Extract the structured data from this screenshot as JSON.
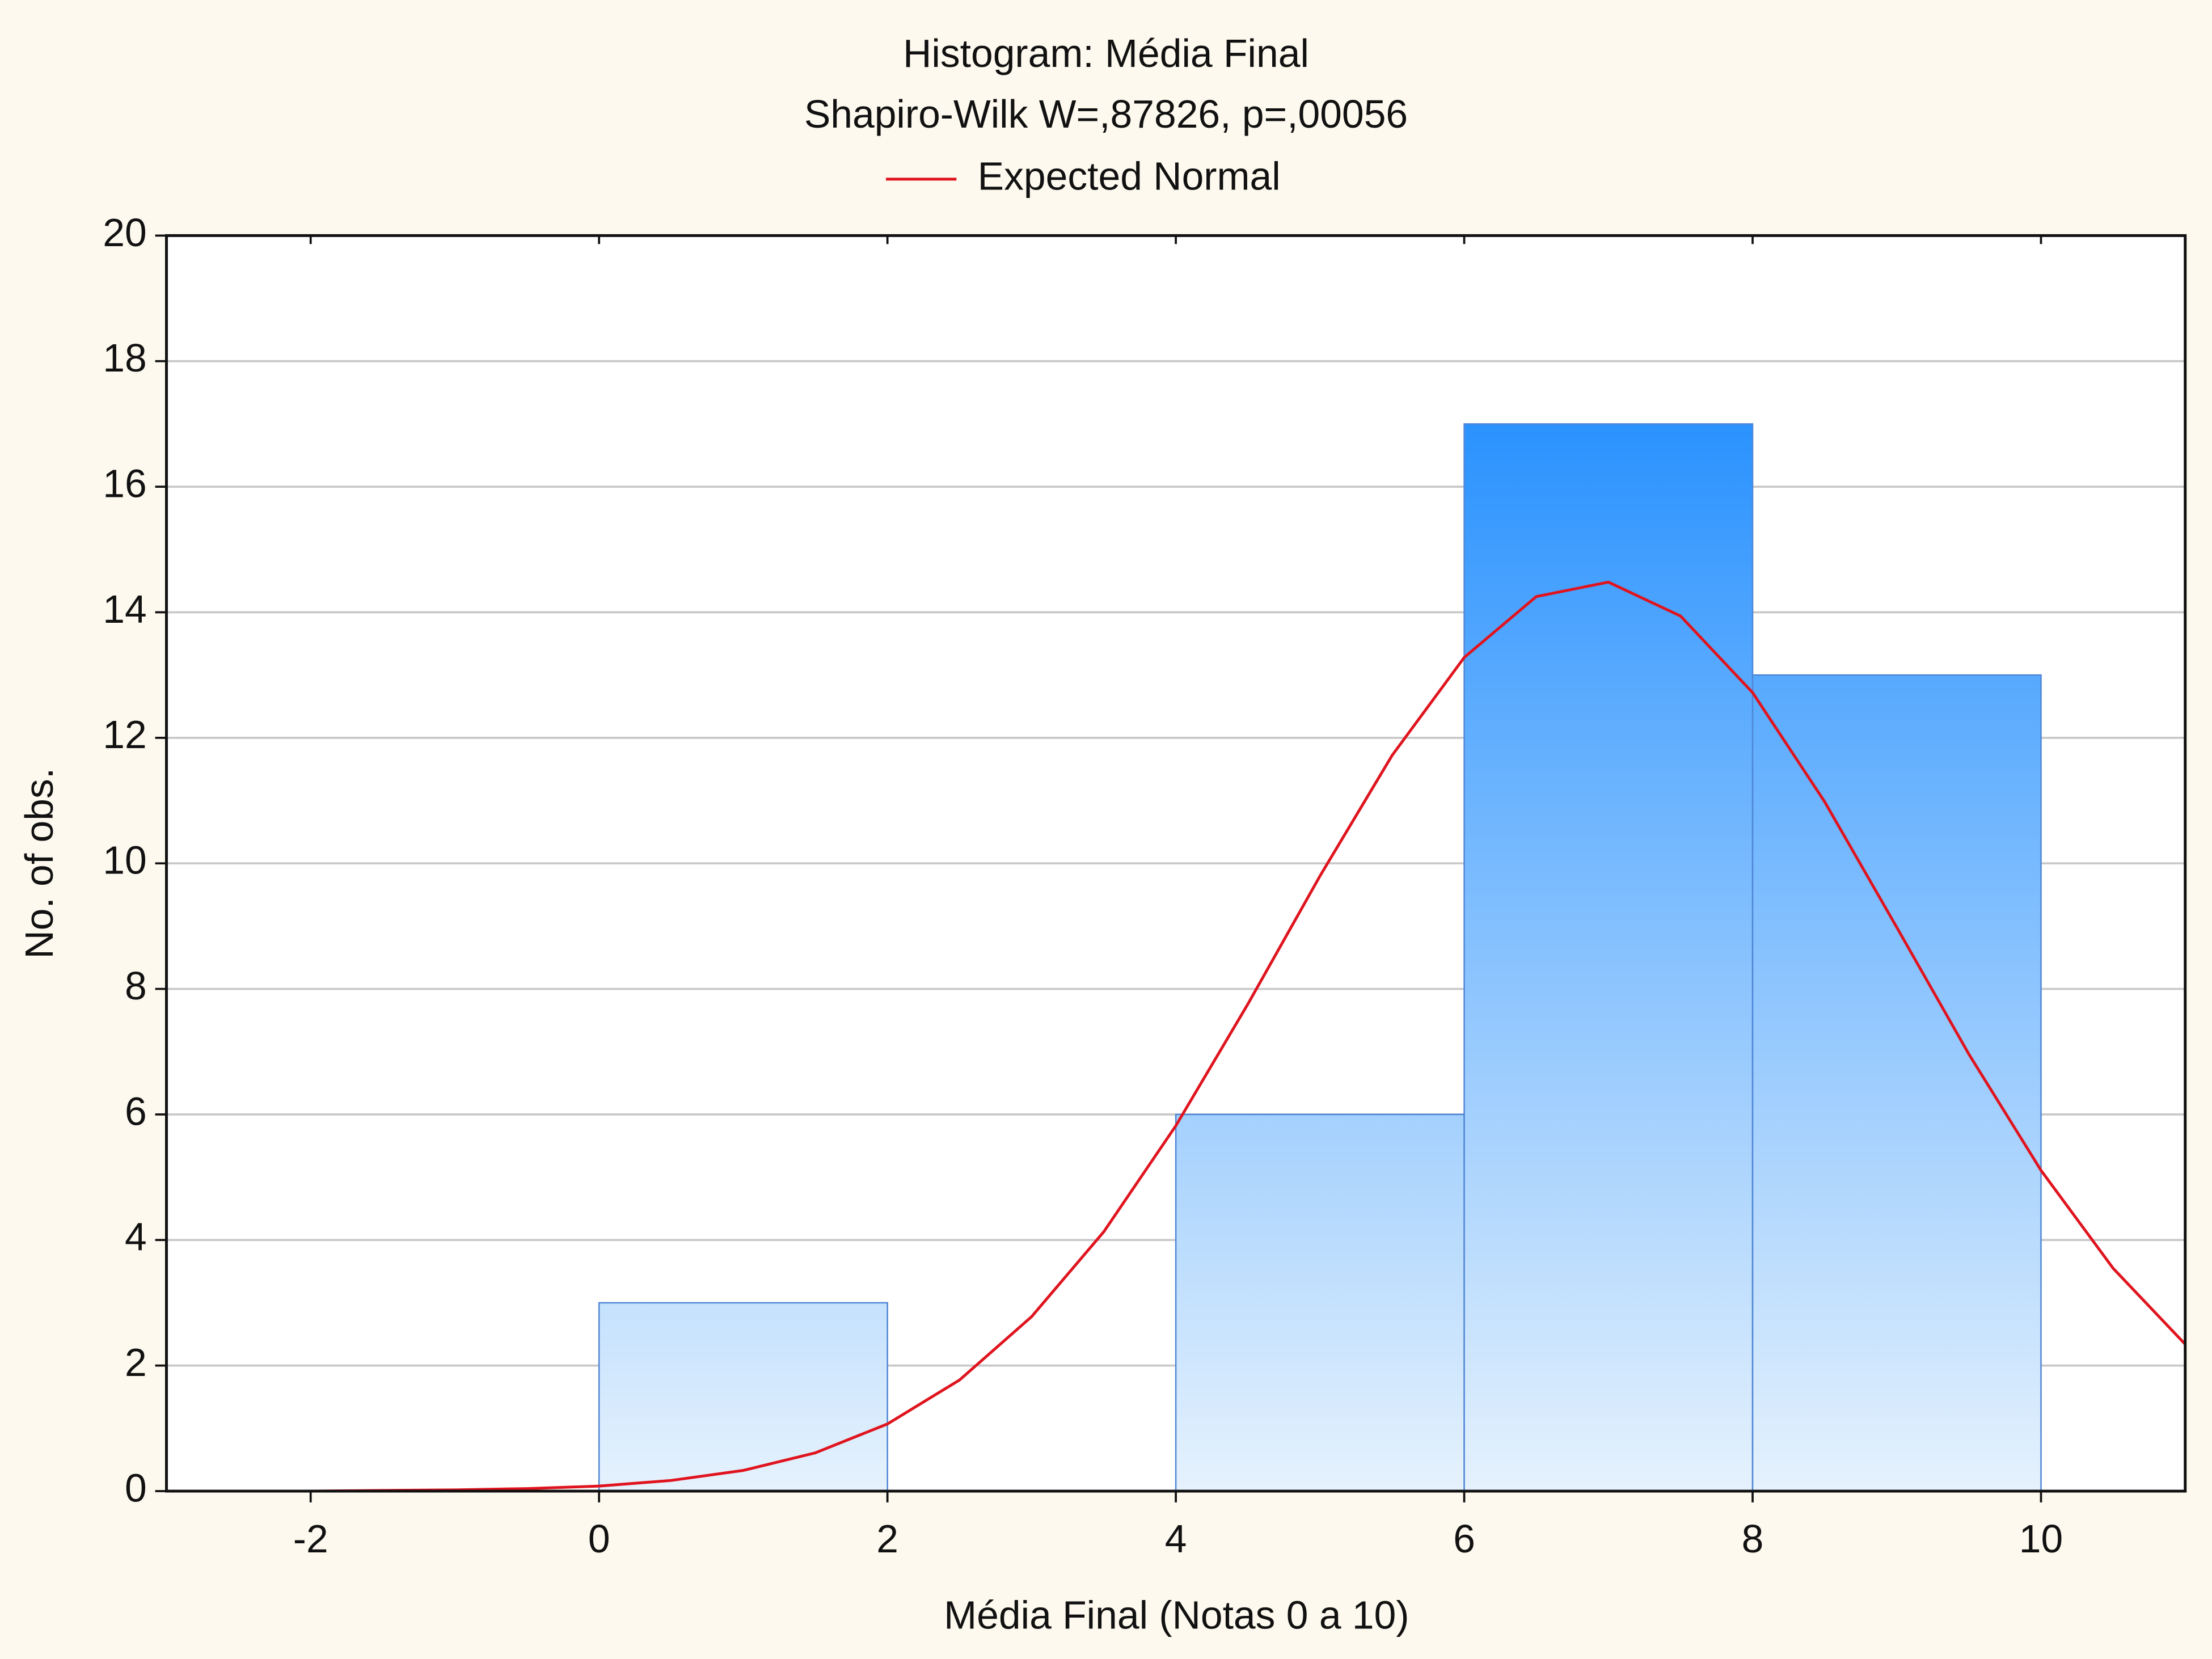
{
  "chart_data": {
    "type": "histogram",
    "title": "Histogram: Média Final",
    "subtitle": "Shapiro-Wilk W=,87826, p=,00056",
    "x_label": "Média Final (Notas 0 a 10)",
    "y_label": "No. of obs.",
    "bins": [
      0,
      2,
      4,
      6,
      8,
      10
    ],
    "counts": [
      3,
      0,
      6,
      17,
      13
    ],
    "color": "#2a92fe",
    "curve": {
      "name": "Expected Normal",
      "color": "#e0141e",
      "x": [
        -3,
        -2.5,
        -2,
        -1.5,
        -1,
        -0.5,
        0,
        0.5,
        1,
        1.5,
        2,
        2.5,
        3,
        3.5,
        4,
        4.5,
        5,
        5.5,
        6,
        6.5,
        7,
        7.5,
        8,
        8.5,
        9,
        9.5,
        10,
        10.5,
        11
      ],
      "values": [
        0,
        0,
        0,
        0.01,
        0.02,
        0.04,
        0.08,
        0.17,
        0.33,
        0.61,
        1.07,
        1.77,
        2.78,
        4.13,
        5.82,
        7.76,
        9.8,
        11.72,
        13.28,
        14.25,
        14.48,
        13.94,
        12.72,
        10.98,
        8.98,
        6.96,
        5.11,
        3.55,
        2.34
      ]
    },
    "xlim": [
      -3,
      11
    ],
    "xticks": [
      -2,
      0,
      2,
      4,
      6,
      8,
      10
    ],
    "ylim": [
      0,
      20
    ],
    "yticks": [
      0,
      2,
      4,
      6,
      8,
      10,
      12,
      14,
      16,
      18,
      20
    ],
    "grid": true,
    "legend": "top"
  }
}
